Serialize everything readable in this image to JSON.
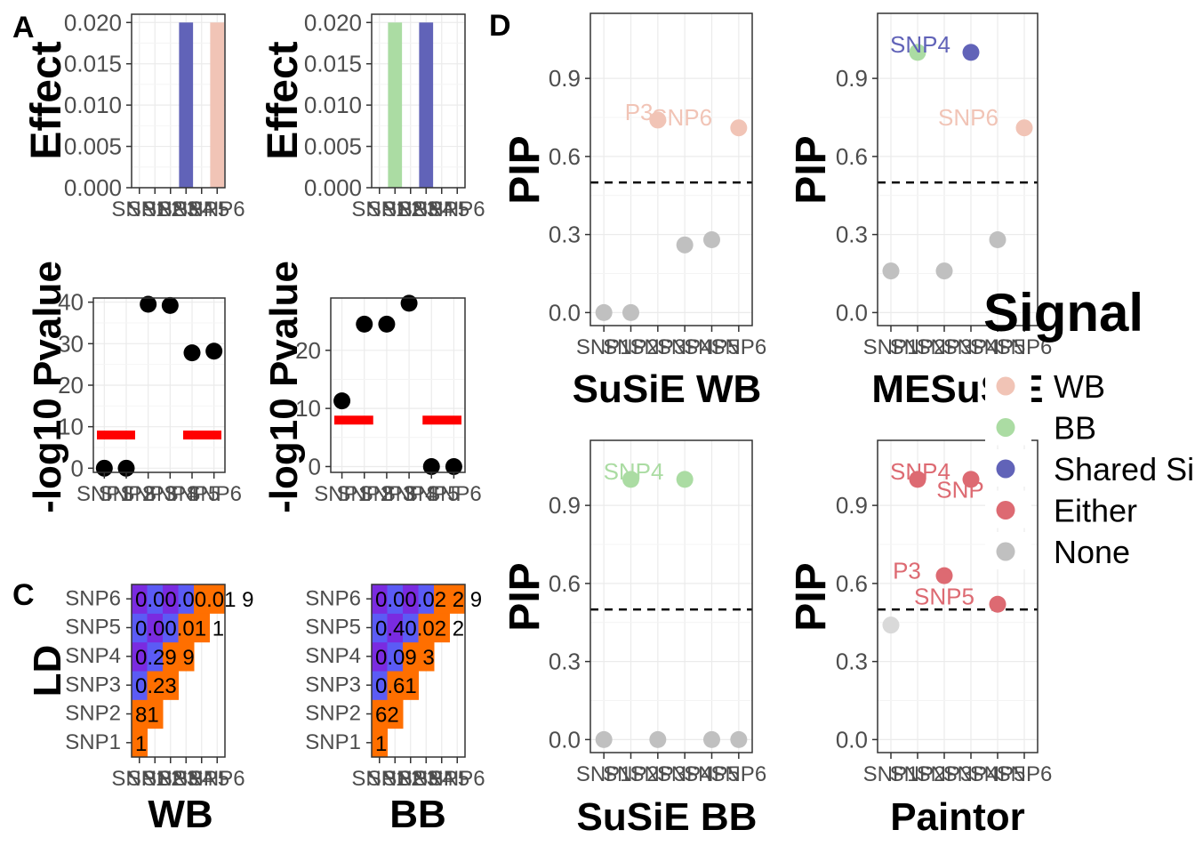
{
  "panel_letters": {
    "a": "A",
    "c": "C",
    "d": "D"
  },
  "legend": {
    "title": "Signal",
    "items": [
      {
        "label": "WB",
        "color": "#F1C4B6"
      },
      {
        "label": "BB",
        "color": "#ABDCA3"
      },
      {
        "label": "Shared Signal",
        "color": "#6163B8"
      },
      {
        "label": "Either",
        "color": "#DD6A72"
      },
      {
        "label": "None",
        "color": "#C0C0C0"
      }
    ]
  },
  "chart_data": [
    {
      "id": "effect-wb",
      "type": "bar",
      "categories": [
        "SNP1",
        "SNP2",
        "SNP3",
        "SNP4",
        "SNP5",
        "SNP6"
      ],
      "values": [
        0,
        0,
        0,
        0.02,
        0,
        0.02
      ],
      "colors": [
        "#C0C0C0",
        "#C0C0C0",
        "#C0C0C0",
        "#6163B8",
        "#C0C0C0",
        "#F1C4B6"
      ],
      "ylabel": "Effect",
      "ylim": [
        0,
        0.021
      ],
      "yticks": [
        "0.000",
        "0.005",
        "0.010",
        "0.015",
        "0.020"
      ]
    },
    {
      "id": "effect-bb",
      "type": "bar",
      "categories": [
        "SNP1",
        "SNP2",
        "SNP3",
        "SNP4",
        "SNP5",
        "SNP6"
      ],
      "values": [
        0,
        0.02,
        0,
        0.02,
        0,
        0
      ],
      "colors": [
        "#C0C0C0",
        "#ABDCA3",
        "#C0C0C0",
        "#6163B8",
        "#C0C0C0",
        "#C0C0C0"
      ],
      "ylabel": "Effect",
      "ylim": [
        0,
        0.021
      ],
      "yticks": [
        "0.000",
        "0.005",
        "0.010",
        "0.015",
        "0.020"
      ]
    },
    {
      "id": "pval-wb",
      "type": "scatter",
      "categories": [
        "SNP1",
        "SNP2",
        "SNP3",
        "SNP4",
        "SNP5",
        "SNP6"
      ],
      "values": [
        0,
        0,
        39.5,
        39.2,
        27.8,
        28.2
      ],
      "threshold": 8,
      "threshold_color": "#FF0000",
      "ylabel": "-log10 Pvalue",
      "ylim": [
        -1,
        41
      ],
      "yticks": [
        0,
        10,
        20,
        30,
        40
      ]
    },
    {
      "id": "pval-bb",
      "type": "scatter",
      "categories": [
        "SNP1",
        "SNP2",
        "SNP3",
        "SNP4",
        "SNP5",
        "SNP6"
      ],
      "values": [
        11.3,
        24.5,
        24.5,
        28.1,
        0,
        0
      ],
      "threshold": 8,
      "threshold_color": "#FF0000",
      "ylabel": "-log10 Pvalue",
      "ylim": [
        -1,
        29
      ],
      "yticks": [
        0,
        10,
        20
      ]
    },
    {
      "id": "ld-wb",
      "type": "heatmap",
      "xlabel": "WB",
      "ylabel": "LD",
      "categories": [
        "SNP1",
        "SNP2",
        "SNP3",
        "SNP4",
        "SNP5",
        "SNP6"
      ],
      "rows": [
        {
          "snp": "SNP1",
          "label": "1"
        },
        {
          "snp": "SNP2",
          "label": "81"
        },
        {
          "snp": "SNP3",
          "label": "0.23"
        },
        {
          "snp": "SNP4",
          "label": "0.29 9"
        },
        {
          "snp": "SNP5",
          "label": "0.00.01 1"
        },
        {
          "snp": "SNP6",
          "label": "0.00.00.01 9"
        }
      ]
    },
    {
      "id": "ld-bb",
      "type": "heatmap",
      "xlabel": "BB",
      "ylabel": "",
      "categories": [
        "SNP1",
        "SNP2",
        "SNP3",
        "SNP4",
        "SNP5",
        "SNP6"
      ],
      "rows": [
        {
          "snp": "SNP1",
          "label": "1"
        },
        {
          "snp": "SNP2",
          "label": "62"
        },
        {
          "snp": "SNP3",
          "label": "0.61"
        },
        {
          "snp": "SNP4",
          "label": "0.09 3"
        },
        {
          "snp": "SNP5",
          "label": "0.40.02 2"
        },
        {
          "snp": "SNP6",
          "label": "0.00.02 2 9"
        }
      ]
    },
    {
      "id": "pip-susie-wb",
      "type": "scatter",
      "xlabel": "SuSiE WB",
      "ylabel": "PIP",
      "categories": [
        "SNP1",
        "SNP2",
        "SNP3",
        "SNP4",
        "SNP5",
        "SNP6"
      ],
      "values": [
        0,
        0,
        0.74,
        0.26,
        0.28,
        0.71
      ],
      "colors": [
        "#C0C0C0",
        "#C0C0C0",
        "#F1C4B6",
        "#C0C0C0",
        "#C0C0C0",
        "#F1C4B6"
      ],
      "threshold": 0.5,
      "ylim": [
        -0.05,
        1.15
      ],
      "yticks": [
        "0.0",
        "0.3",
        "0.6",
        "0.9"
      ],
      "annotations": [
        {
          "text": "P3",
          "x": 1.8,
          "y": 0.77,
          "color": "#F1C4B6"
        },
        {
          "text": "SNP6",
          "x": 3.4,
          "y": 0.75,
          "color": "#F1C4B6"
        }
      ]
    },
    {
      "id": "pip-mesusie",
      "type": "scatter",
      "xlabel": "MESuSiE",
      "ylabel": "PIP",
      "categories": [
        "SNP1",
        "SNP2",
        "SNP3",
        "SNP4",
        "SNP5",
        "SNP6"
      ],
      "values": [
        0.16,
        1.0,
        0.16,
        1.0,
        0.28,
        0.71
      ],
      "colors": [
        "#C0C0C0",
        "#ABDCA3",
        "#C0C0C0",
        "#6163B8",
        "#C0C0C0",
        "#F1C4B6"
      ],
      "threshold": 0.5,
      "ylim": [
        -0.05,
        1.15
      ],
      "yticks": [
        "0.0",
        "0.3",
        "0.6",
        "0.9"
      ],
      "annotations": [
        {
          "text": "SNP4",
          "x": 1.6,
          "y": 1.03,
          "color": "#6163B8"
        },
        {
          "text": "SNP6",
          "x": 3.4,
          "y": 0.75,
          "color": "#F1C4B6"
        }
      ]
    },
    {
      "id": "pip-susie-bb",
      "type": "scatter",
      "xlabel": "SuSiE BB",
      "ylabel": "PIP",
      "categories": [
        "SNP1",
        "SNP2",
        "SNP3",
        "SNP4",
        "SNP5",
        "SNP6"
      ],
      "values": [
        0,
        1.0,
        0,
        1.0,
        0,
        0
      ],
      "colors": [
        "#C0C0C0",
        "#ABDCA3",
        "#C0C0C0",
        "#ABDCA3",
        "#C0C0C0",
        "#C0C0C0"
      ],
      "threshold": 0.5,
      "ylim": [
        -0.05,
        1.15
      ],
      "yticks": [
        "0.0",
        "0.3",
        "0.6",
        "0.9"
      ],
      "annotations": [
        {
          "text": "SNP4",
          "x": 1.6,
          "y": 1.03,
          "color": "#ABDCA3"
        }
      ]
    },
    {
      "id": "pip-paintor",
      "type": "scatter",
      "xlabel": "Paintor",
      "ylabel": "PIP",
      "categories": [
        "SNP1",
        "SNP2",
        "SNP3",
        "SNP4",
        "SNP5",
        "SNP6"
      ],
      "values": [
        0.44,
        1.0,
        0.63,
        1.0,
        0.52,
        null
      ],
      "colors": [
        "#D9D9D9",
        "#DD6A72",
        "#DD6A72",
        "#DD6A72",
        "#DD6A72",
        "#DD6A72"
      ],
      "threshold": 0.5,
      "ylim": [
        -0.05,
        1.15
      ],
      "yticks": [
        "0.0",
        "0.3",
        "0.6",
        "0.9"
      ],
      "annotations": [
        {
          "text": "SNP4",
          "x": 1.6,
          "y": 1.03,
          "color": "#DD6A72"
        },
        {
          "text": "SNP",
          "x": 3.1,
          "y": 0.96,
          "color": "#DD6A72"
        },
        {
          "text": "P3",
          "x": 1.1,
          "y": 0.65,
          "color": "#DD6A72"
        },
        {
          "text": "SNP5",
          "x": 2.5,
          "y": 0.55,
          "color": "#DD6A72"
        }
      ]
    }
  ]
}
